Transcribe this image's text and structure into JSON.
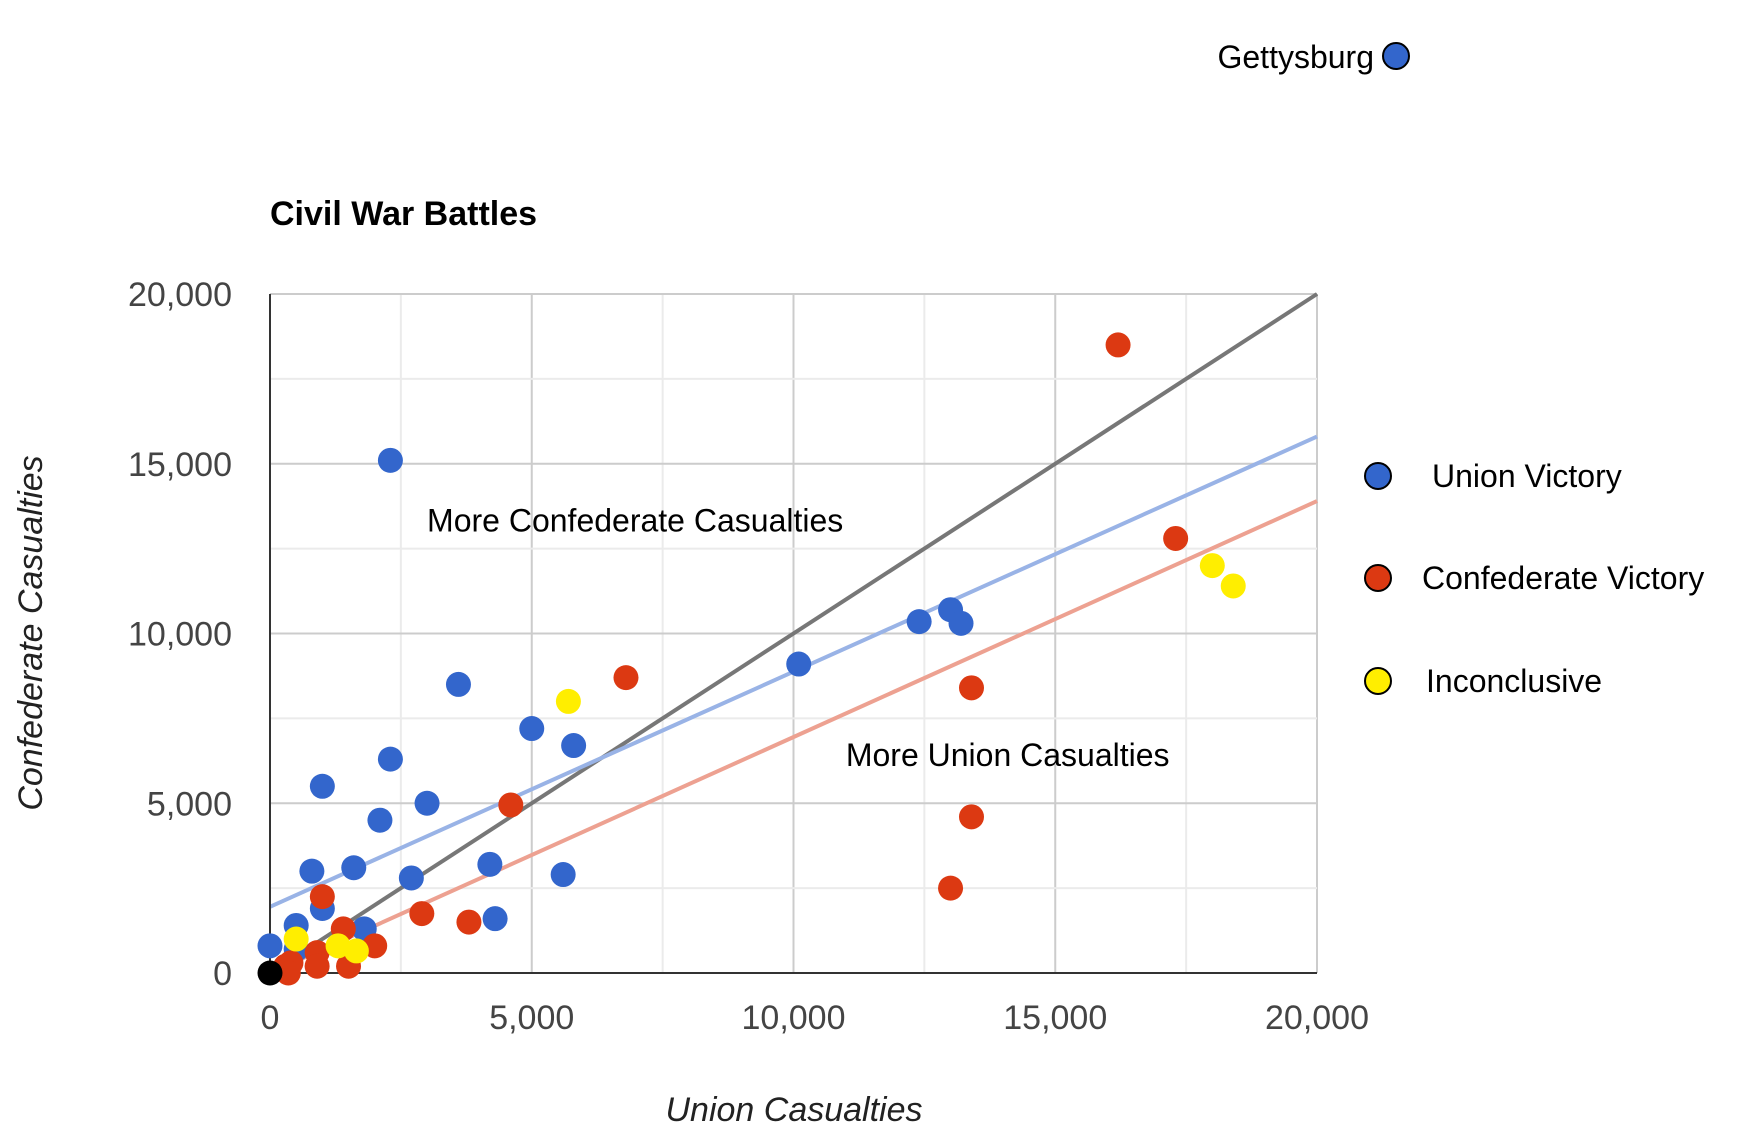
{
  "chart_data": {
    "type": "scatter",
    "title": "Civil War Battles",
    "xlabel": "Union Casualties",
    "ylabel": "Confederate Casualties",
    "xlim": [
      0,
      20000
    ],
    "ylim": [
      0,
      20000
    ],
    "x_ticks": [
      "0",
      "5,000",
      "10,000",
      "15,000",
      "20,000"
    ],
    "y_ticks": [
      "0",
      "5,000",
      "10,000",
      "15,000",
      "20,000"
    ],
    "grid": true,
    "legend_position": "right",
    "series": [
      {
        "name": "Union Victory",
        "color": "#3366cc",
        "points": [
          [
            2300,
            15100
          ],
          [
            12400,
            10350
          ],
          [
            13000,
            10700
          ],
          [
            13200,
            10300
          ],
          [
            10100,
            9100
          ],
          [
            3600,
            8500
          ],
          [
            5000,
            7200
          ],
          [
            5800,
            6700
          ],
          [
            2300,
            6300
          ],
          [
            1000,
            5500
          ],
          [
            3000,
            5000
          ],
          [
            2100,
            4500
          ],
          [
            4200,
            3200
          ],
          [
            1600,
            3100
          ],
          [
            800,
            3000
          ],
          [
            2700,
            2800
          ],
          [
            5600,
            2900
          ],
          [
            4300,
            1600
          ],
          [
            1000,
            1900
          ],
          [
            1800,
            1300
          ],
          [
            500,
            1400
          ],
          [
            0,
            800
          ],
          [
            500,
            700
          ]
        ]
      },
      {
        "name": "Confederate Victory",
        "color": "#dc3912",
        "points": [
          [
            16200,
            18500
          ],
          [
            17300,
            12800
          ],
          [
            6800,
            8700
          ],
          [
            13400,
            8400
          ],
          [
            4600,
            4950
          ],
          [
            13400,
            4600
          ],
          [
            13000,
            2500
          ],
          [
            1000,
            2250
          ],
          [
            2900,
            1750
          ],
          [
            3800,
            1500
          ],
          [
            1400,
            1300
          ],
          [
            2000,
            800
          ],
          [
            900,
            600
          ],
          [
            900,
            200
          ],
          [
            1500,
            200
          ],
          [
            300,
            200
          ],
          [
            400,
            300
          ],
          [
            350,
            0
          ]
        ]
      },
      {
        "name": "Inconclusive",
        "color": "#ffee00",
        "points": [
          [
            18000,
            12000
          ],
          [
            18400,
            11400
          ],
          [
            5700,
            8000
          ],
          [
            500,
            1000
          ],
          [
            1300,
            800
          ],
          [
            1650,
            650
          ]
        ]
      },
      {
        "name": "",
        "color": "#000000",
        "points": [
          [
            0,
            0
          ]
        ]
      }
    ],
    "trendlines": [
      {
        "from": [
          0,
          0
        ],
        "to": [
          20000,
          20000
        ],
        "color": "#777777"
      },
      {
        "from": [
          0,
          1950
        ],
        "to": [
          20000,
          15800
        ],
        "color": "#99b3e6"
      },
      {
        "from": [
          0,
          0
        ],
        "to": [
          20000,
          13900
        ],
        "color": "#eda191"
      }
    ],
    "annotations": [
      {
        "text": "More Confederate Casualties",
        "x": 3000,
        "y": 13000
      },
      {
        "text": "More Union Casualties",
        "x": 11000,
        "y": 6100
      }
    ],
    "callout": {
      "text": "Gettysburg",
      "color": "#3366cc"
    }
  }
}
